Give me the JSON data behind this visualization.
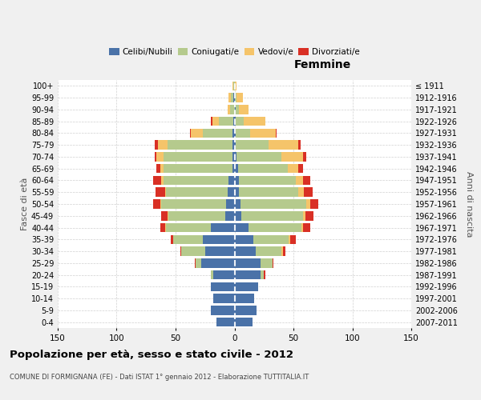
{
  "age_groups": [
    "0-4",
    "5-9",
    "10-14",
    "15-19",
    "20-24",
    "25-29",
    "30-34",
    "35-39",
    "40-44",
    "45-49",
    "50-54",
    "55-59",
    "60-64",
    "65-69",
    "70-74",
    "75-79",
    "80-84",
    "85-89",
    "90-94",
    "95-99",
    "100+"
  ],
  "birth_years": [
    "2007-2011",
    "2002-2006",
    "1997-2001",
    "1992-1996",
    "1987-1991",
    "1982-1986",
    "1977-1981",
    "1972-1976",
    "1967-1971",
    "1962-1966",
    "1957-1961",
    "1952-1956",
    "1947-1951",
    "1942-1946",
    "1937-1941",
    "1932-1936",
    "1927-1931",
    "1922-1926",
    "1917-1921",
    "1912-1916",
    "≤ 1911"
  ],
  "males": {
    "celibe": [
      15,
      20,
      18,
      20,
      18,
      28,
      25,
      27,
      20,
      8,
      7,
      6,
      5,
      2,
      2,
      2,
      2,
      1,
      0,
      1,
      0
    ],
    "coniugato": [
      0,
      0,
      0,
      0,
      2,
      5,
      20,
      25,
      38,
      48,
      55,
      52,
      55,
      58,
      58,
      55,
      25,
      12,
      4,
      2,
      1
    ],
    "vedovo": [
      0,
      0,
      0,
      0,
      0,
      0,
      0,
      0,
      1,
      1,
      1,
      1,
      2,
      3,
      6,
      8,
      10,
      6,
      2,
      2,
      1
    ],
    "divorziato": [
      0,
      0,
      0,
      0,
      0,
      1,
      1,
      2,
      4,
      5,
      6,
      8,
      7,
      3,
      2,
      3,
      1,
      1,
      0,
      0,
      0
    ]
  },
  "females": {
    "nubile": [
      15,
      19,
      17,
      20,
      22,
      22,
      18,
      16,
      12,
      6,
      5,
      4,
      4,
      3,
      2,
      1,
      1,
      1,
      1,
      0,
      0
    ],
    "coniugata": [
      0,
      0,
      0,
      0,
      3,
      10,
      22,
      30,
      45,
      52,
      56,
      50,
      48,
      42,
      38,
      28,
      12,
      7,
      3,
      2,
      0
    ],
    "vedova": [
      0,
      0,
      0,
      0,
      0,
      0,
      1,
      1,
      1,
      2,
      3,
      5,
      6,
      9,
      18,
      25,
      22,
      18,
      8,
      5,
      2
    ],
    "divorziata": [
      0,
      0,
      0,
      0,
      1,
      1,
      2,
      5,
      6,
      7,
      7,
      7,
      6,
      4,
      3,
      2,
      1,
      0,
      0,
      0,
      0
    ]
  },
  "colors": {
    "celibe": "#4a72a8",
    "coniugato": "#b5ca8d",
    "vedovo": "#f5c46a",
    "divorziato": "#d93025"
  },
  "xlim": 150,
  "title": "Popolazione per età, sesso e stato civile - 2012",
  "subtitle": "COMUNE DI FORMIGNANA (FE) - Dati ISTAT 1° gennaio 2012 - Elaborazione TUTTITALIA.IT",
  "xlabel_right": "Femmine",
  "ylabel_left": "Fasce di età",
  "ylabel_right": "Anni di nascita",
  "bg_color": "#f0f0f0",
  "plot_bg": "#ffffff",
  "grid_color": "#cccccc"
}
